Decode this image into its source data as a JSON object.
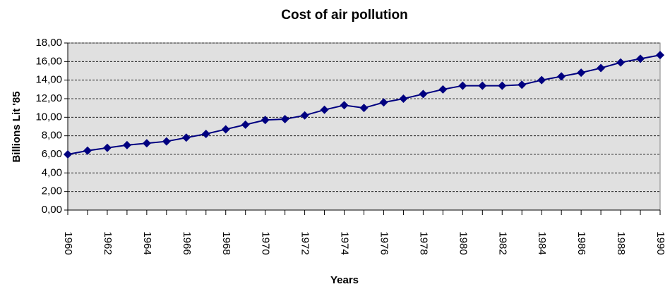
{
  "chart_data": {
    "type": "line",
    "title": "Cost of air pollution",
    "x_label": "Years",
    "y_label": "Billions Lit '85",
    "categories": [
      "1960",
      null,
      "1962",
      null,
      "1964",
      null,
      "1966",
      null,
      "1968",
      null,
      "1970",
      null,
      "1972",
      null,
      "1974",
      null,
      "1976",
      null,
      "1978",
      null,
      "1980",
      null,
      "1982",
      null,
      "1984",
      null,
      "1986",
      null,
      "1988",
      null,
      "1990"
    ],
    "series": [
      {
        "name": "Cost of air pollution",
        "color": "#000080",
        "values": [
          6.0,
          6.4,
          6.7,
          7.0,
          7.2,
          7.4,
          7.8,
          8.2,
          8.7,
          9.2,
          9.7,
          9.8,
          10.2,
          10.8,
          11.3,
          11.0,
          11.6,
          12.0,
          12.5,
          13.0,
          13.4,
          13.4,
          13.4,
          13.5,
          14.0,
          14.4,
          14.8,
          15.3,
          15.9,
          16.3,
          16.7
        ]
      }
    ],
    "ylim": [
      0,
      18
    ],
    "yticks": [
      {
        "value": 0,
        "label": "0,00"
      },
      {
        "value": 2,
        "label": "2,00"
      },
      {
        "value": 4,
        "label": "4,00"
      },
      {
        "value": 6,
        "label": "6,00"
      },
      {
        "value": 8,
        "label": "8,00"
      },
      {
        "value": 10,
        "label": "10,00"
      },
      {
        "value": 12,
        "label": "12,00"
      },
      {
        "value": 14,
        "label": "14,00"
      },
      {
        "value": 16,
        "label": "16,00"
      },
      {
        "value": 18,
        "label": "18,00"
      }
    ],
    "grid": true,
    "plot_background": "#e0e0e0"
  }
}
